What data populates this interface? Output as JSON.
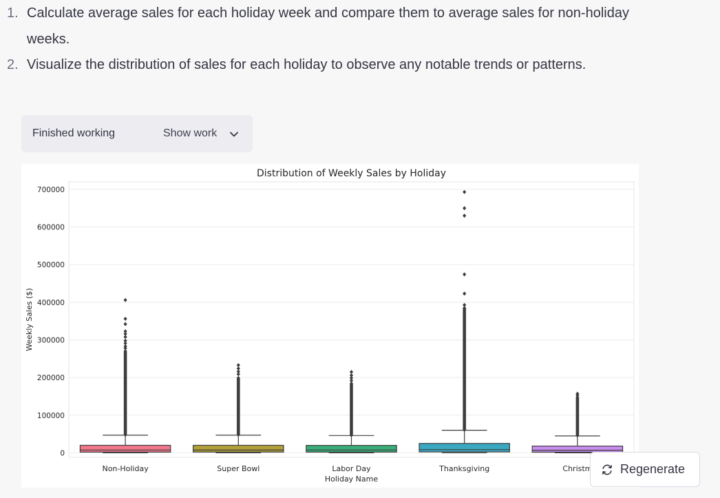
{
  "conversation": {
    "steps": [
      {
        "number": "1.",
        "text": "Calculate average sales for each holiday week and compare them to average sales for non-holiday weeks."
      },
      {
        "number": "2.",
        "text": "Visualize the distribution of sales for each holiday to observe any notable trends or patterns."
      }
    ],
    "work_status": "Finished working",
    "show_work_label": "Show work",
    "regenerate_label": "Regenerate"
  },
  "colors": {
    "page_background": "#f7f7f8",
    "pill_background": "#ececf1",
    "box_colors": [
      "#f2778b",
      "#b2a038",
      "#3aae7a",
      "#3aa8c1",
      "#c98ef0"
    ]
  },
  "icons": [
    "chevron-down-icon",
    "refresh-icon"
  ],
  "chart_data": {
    "type": "box",
    "title": "Distribution of Weekly Sales by Holiday",
    "xlabel": "Holiday Name",
    "ylabel": "Weekly Sales ($)",
    "ylim": [
      -12000,
      720000
    ],
    "yticks": [
      0,
      100000,
      200000,
      300000,
      400000,
      500000,
      600000,
      700000
    ],
    "categories": [
      "Non-Holiday",
      "Super Bowl",
      "Labor Day",
      "Thanksgiving",
      "Christmas"
    ],
    "visible_category_labels": [
      "Non-Holiday",
      "Super Bowl",
      "Labor Day",
      "Thanksgiving",
      "Christm"
    ],
    "grid": true,
    "boxes": [
      {
        "name": "Non-Holiday",
        "min": 0,
        "q1": 2000,
        "median": 7600,
        "q3": 20000,
        "whisker_high": 47000,
        "outlier_range": [
          48000,
          272000
        ],
        "outliers": [
          278000,
          283000,
          291000,
          298000,
          308000,
          316000,
          323000,
          342000,
          356000,
          406000
        ]
      },
      {
        "name": "Super Bowl",
        "min": 0,
        "q1": 2100,
        "median": 7500,
        "q3": 20000,
        "whisker_high": 47000,
        "outlier_range": [
          48000,
          200000
        ],
        "outliers": [
          209000,
          216000,
          224000,
          233000
        ]
      },
      {
        "name": "Labor Day",
        "min": 0,
        "q1": 2000,
        "median": 7600,
        "q3": 19800,
        "whisker_high": 46000,
        "outlier_range": [
          47000,
          185000
        ],
        "outliers": [
          192000,
          199000,
          206000,
          215000
        ]
      },
      {
        "name": "Thanksgiving",
        "min": 0,
        "q1": 2500,
        "median": 8500,
        "q3": 25000,
        "whisker_high": 60000,
        "outlier_range": [
          61000,
          385000
        ],
        "outliers": [
          393000,
          423000,
          474000,
          630000,
          650000,
          693000
        ]
      },
      {
        "name": "Christmas",
        "min": 0,
        "q1": 1800,
        "median": 7000,
        "q3": 18000,
        "whisker_high": 45000,
        "outlier_range": [
          46000,
          145000
        ],
        "outliers": [
          148000,
          153000,
          157000
        ]
      }
    ]
  }
}
